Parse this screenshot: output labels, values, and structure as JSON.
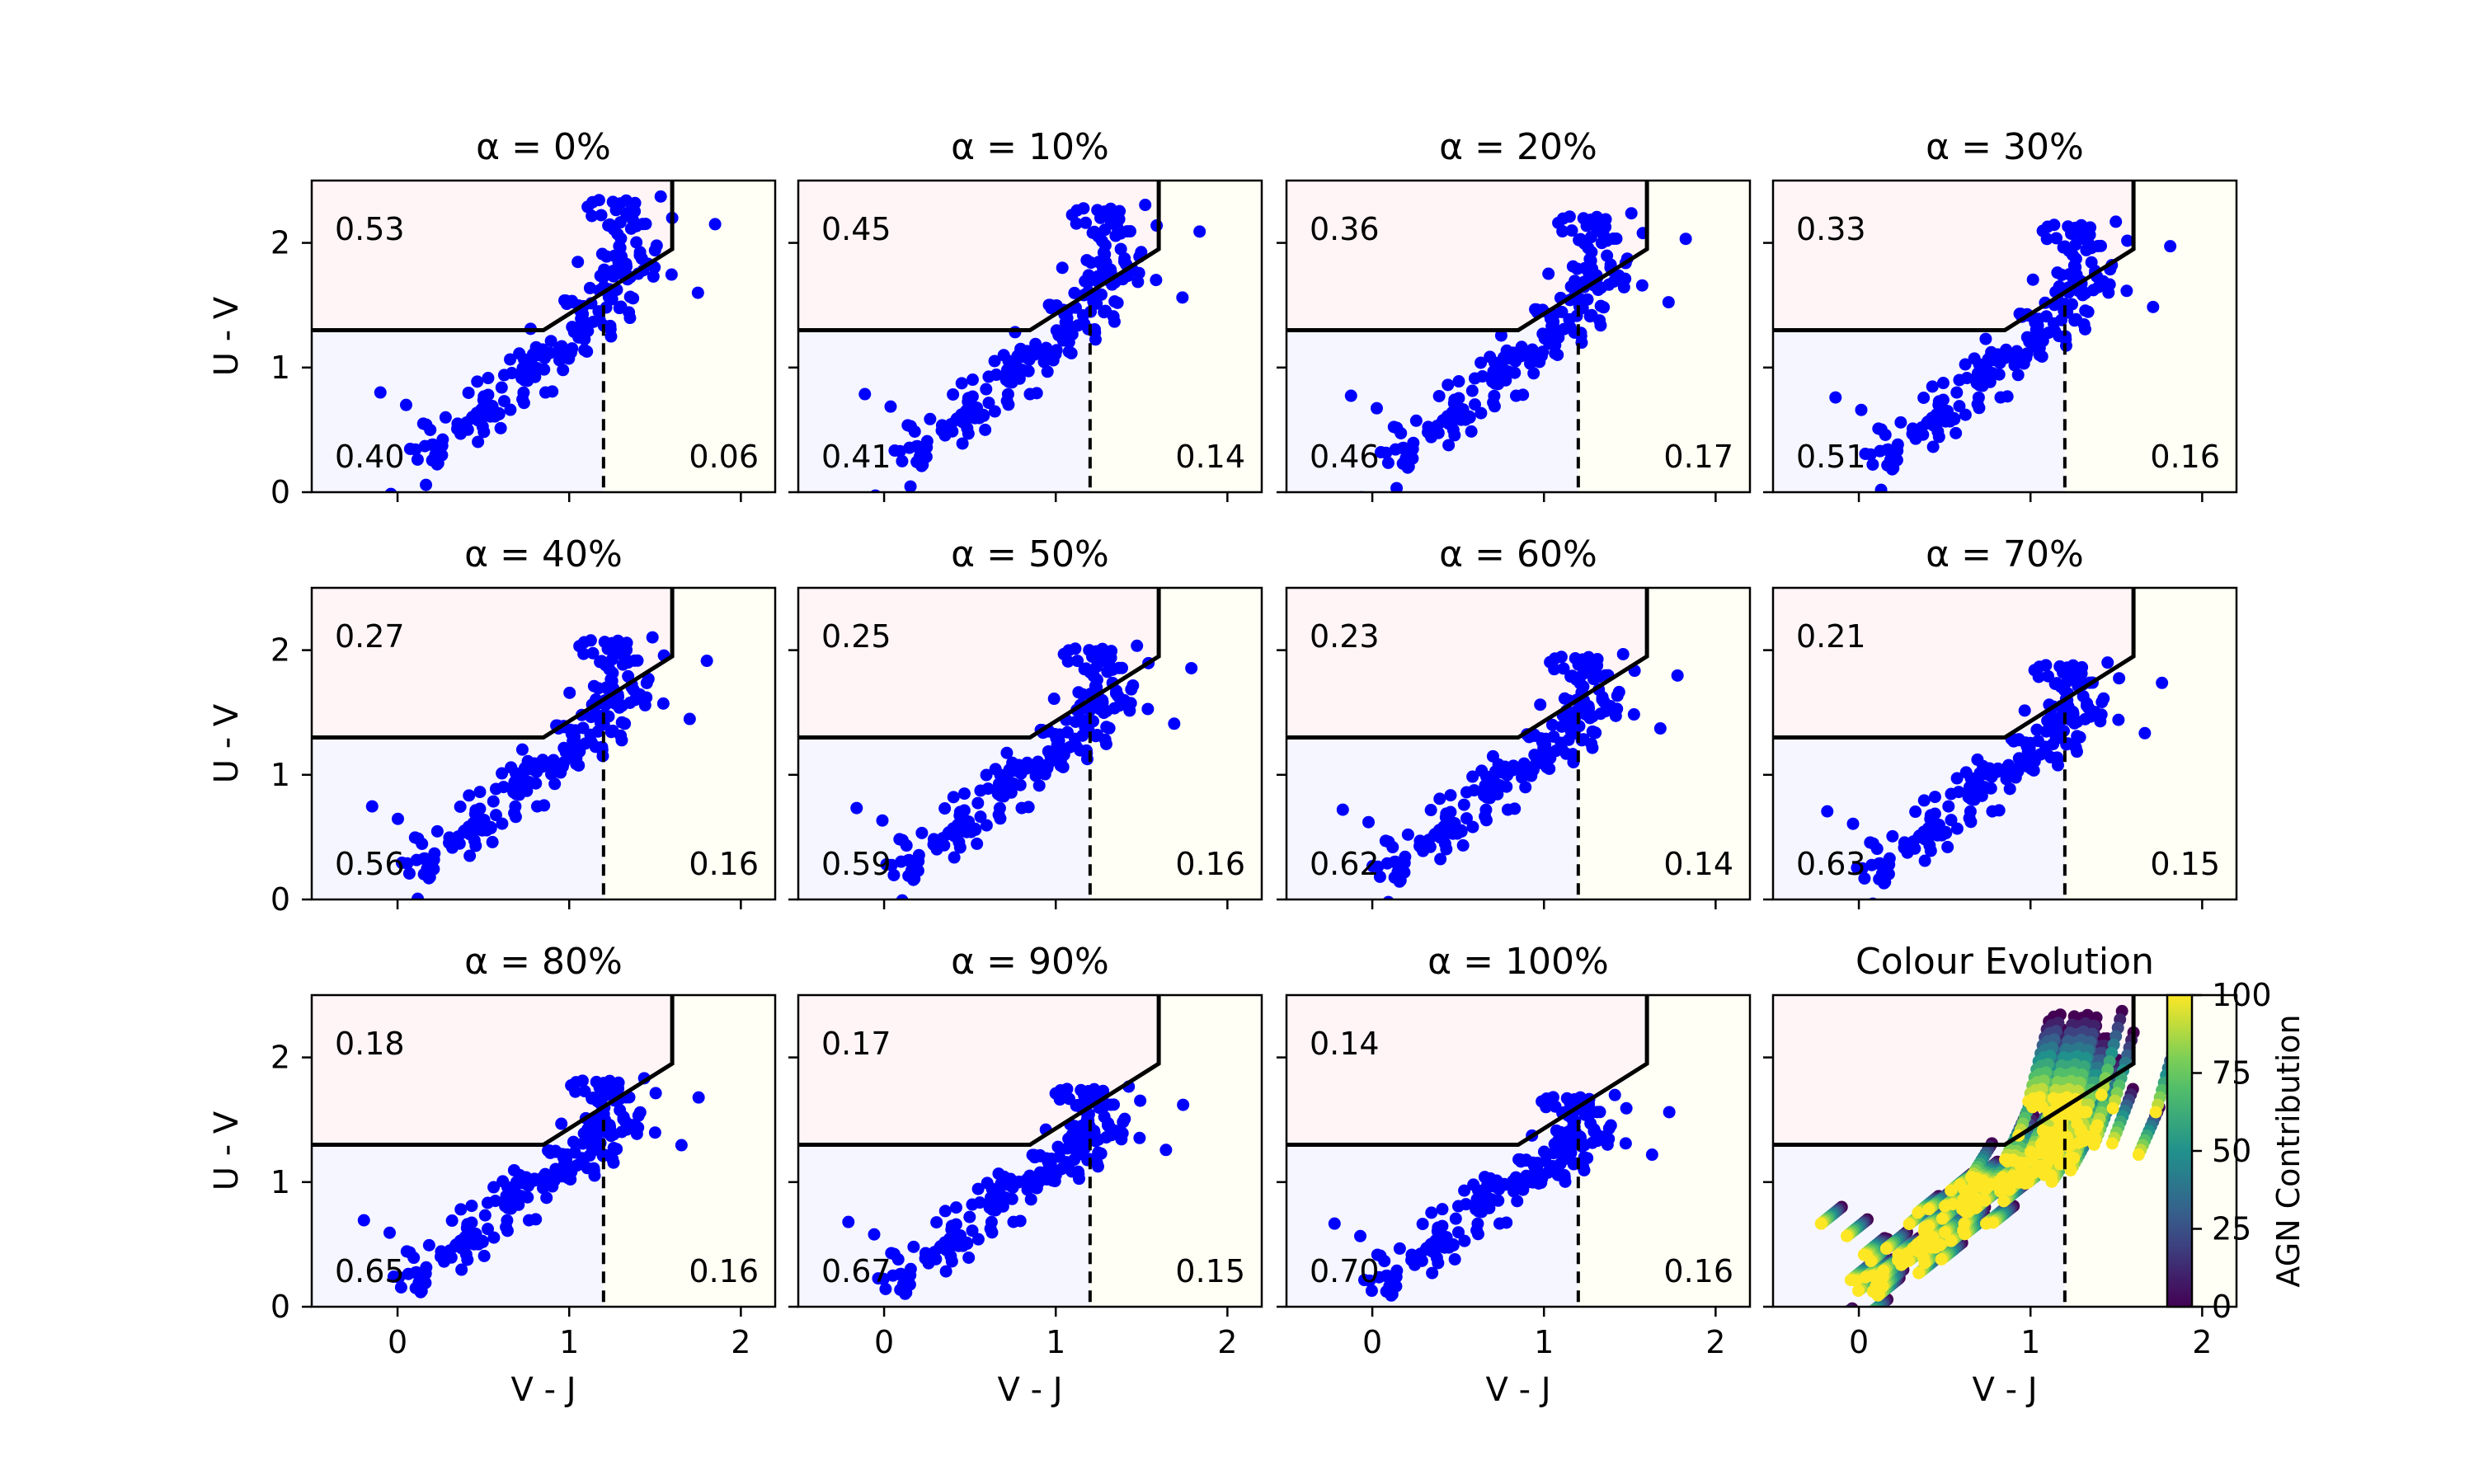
{
  "figure": {
    "xlabel": "V - J",
    "ylabel": "U - V",
    "xticks": [
      "0",
      "1",
      "2"
    ],
    "yticks": [
      "0",
      "1",
      "2"
    ],
    "colors": {
      "quiescent_region": "#fff5f7",
      "starforming_region": "#f5f6ff",
      "dusty_region": "#fffff5",
      "points": "#0000ff",
      "boundary": "#000000"
    }
  },
  "chart_data": [
    {
      "type": "scatter",
      "title": "α = 0%",
      "alpha_pct": 0,
      "xlim": [
        -0.5,
        2.2
      ],
      "ylim": [
        0,
        2.5
      ],
      "fractions": {
        "quiescent": "0.53",
        "star_forming": "0.40",
        "dusty": "0.06"
      }
    },
    {
      "type": "scatter",
      "title": "α = 10%",
      "alpha_pct": 10,
      "xlim": [
        -0.5,
        2.2
      ],
      "ylim": [
        0,
        2.5
      ],
      "fractions": {
        "quiescent": "0.45",
        "star_forming": "0.41",
        "dusty": "0.14"
      }
    },
    {
      "type": "scatter",
      "title": "α = 20%",
      "alpha_pct": 20,
      "xlim": [
        -0.5,
        2.2
      ],
      "ylim": [
        0,
        2.5
      ],
      "fractions": {
        "quiescent": "0.36",
        "star_forming": "0.46",
        "dusty": "0.17"
      }
    },
    {
      "type": "scatter",
      "title": "α = 30%",
      "alpha_pct": 30,
      "xlim": [
        -0.5,
        2.2
      ],
      "ylim": [
        0,
        2.5
      ],
      "fractions": {
        "quiescent": "0.33",
        "star_forming": "0.51",
        "dusty": "0.16"
      }
    },
    {
      "type": "scatter",
      "title": "α = 40%",
      "alpha_pct": 40,
      "xlim": [
        -0.5,
        2.2
      ],
      "ylim": [
        0,
        2.5
      ],
      "fractions": {
        "quiescent": "0.27",
        "star_forming": "0.56",
        "dusty": "0.16"
      }
    },
    {
      "type": "scatter",
      "title": "α = 50%",
      "alpha_pct": 50,
      "xlim": [
        -0.5,
        2.2
      ],
      "ylim": [
        0,
        2.5
      ],
      "fractions": {
        "quiescent": "0.25",
        "star_forming": "0.59",
        "dusty": "0.16"
      }
    },
    {
      "type": "scatter",
      "title": "α = 60%",
      "alpha_pct": 60,
      "xlim": [
        -0.5,
        2.2
      ],
      "ylim": [
        0,
        2.5
      ],
      "fractions": {
        "quiescent": "0.23",
        "star_forming": "0.62",
        "dusty": "0.14"
      }
    },
    {
      "type": "scatter",
      "title": "α = 70%",
      "alpha_pct": 70,
      "xlim": [
        -0.5,
        2.2
      ],
      "ylim": [
        0,
        2.5
      ],
      "fractions": {
        "quiescent": "0.21",
        "star_forming": "0.63",
        "dusty": "0.15"
      }
    },
    {
      "type": "scatter",
      "title": "α = 80%",
      "alpha_pct": 80,
      "xlim": [
        -0.5,
        2.2
      ],
      "ylim": [
        0,
        2.5
      ],
      "fractions": {
        "quiescent": "0.18",
        "star_forming": "0.65",
        "dusty": "0.16"
      }
    },
    {
      "type": "scatter",
      "title": "α = 90%",
      "alpha_pct": 90,
      "xlim": [
        -0.5,
        2.2
      ],
      "ylim": [
        0,
        2.5
      ],
      "fractions": {
        "quiescent": "0.17",
        "star_forming": "0.67",
        "dusty": "0.15"
      }
    },
    {
      "type": "scatter",
      "title": "α = 100%",
      "alpha_pct": 100,
      "xlim": [
        -0.5,
        2.2
      ],
      "ylim": [
        0,
        2.5
      ],
      "fractions": {
        "quiescent": "0.14",
        "star_forming": "0.70",
        "dusty": "0.16"
      }
    },
    {
      "type": "scatter",
      "title": "Colour Evolution",
      "xlim": [
        -0.5,
        2.2
      ],
      "ylim": [
        0,
        2.5
      ],
      "colorbar": {
        "label": "AGN Contribution",
        "min": 0,
        "max": 100,
        "ticks": [
          "0",
          "25",
          "50",
          "75",
          "100"
        ],
        "colormap": "viridis"
      }
    }
  ]
}
